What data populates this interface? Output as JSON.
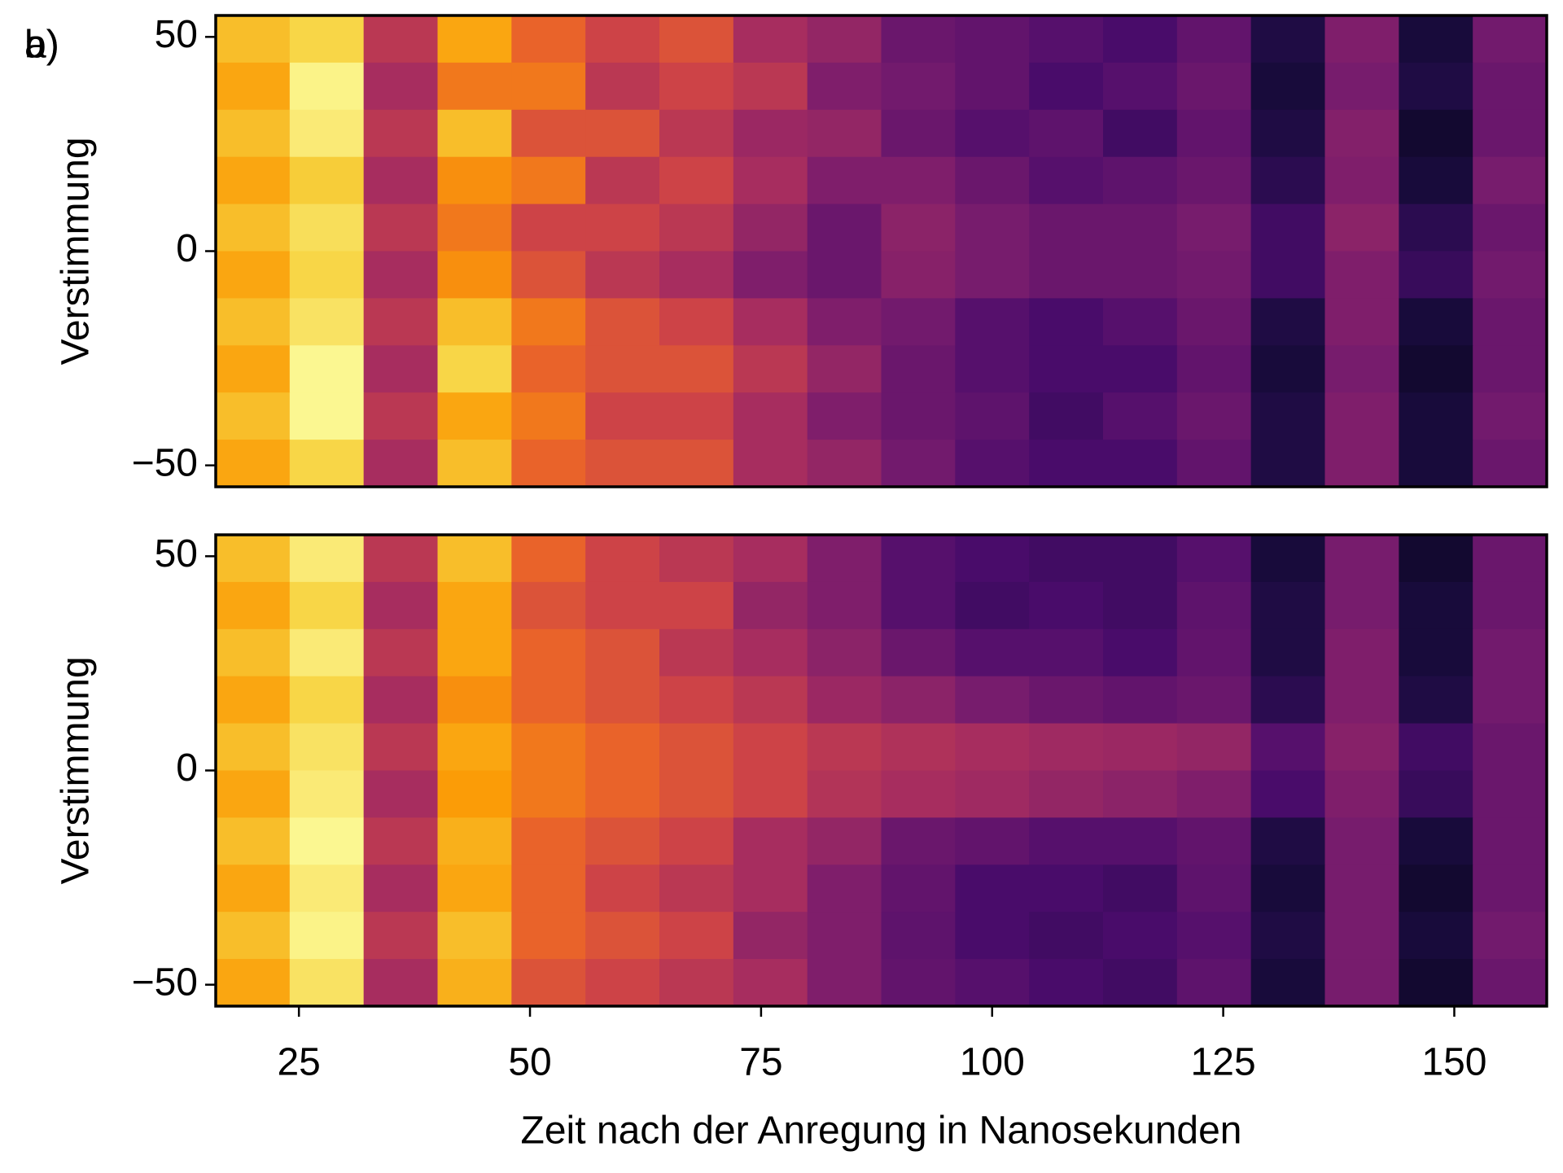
{
  "chart_data": [
    {
      "type": "heatmap",
      "label": "a)",
      "ylabel": "Verstimmung",
      "colormap": [
        "#000004",
        "#1b0c41",
        "#4a0c6b",
        "#781c6d",
        "#a52c60",
        "#cf4446",
        "#ed6925",
        "#fb9b06",
        "#f7d13d",
        "#fcffa4"
      ],
      "xlim": [
        16,
        160
      ],
      "ylim": [
        -55,
        55
      ],
      "yticks": [
        {
          "value": -50,
          "label": "−50"
        },
        0,
        50
      ],
      "x": [
        20,
        28,
        36,
        44,
        52,
        60,
        68,
        76,
        84,
        92,
        100,
        108,
        116,
        124,
        132,
        140,
        148,
        156
      ],
      "y": [
        49.5,
        38.5,
        27.5,
        16.5,
        5.5,
        -5.5,
        -16.5,
        -27.5,
        -38.5,
        -49.5
      ],
      "z": [
        [
          0.85,
          0.9,
          0.5,
          0.8,
          0.65,
          0.55,
          0.6,
          0.45,
          0.4,
          0.3,
          0.28,
          0.25,
          0.22,
          0.28,
          0.12,
          0.35,
          0.1,
          0.32
        ],
        [
          0.8,
          0.97,
          0.45,
          0.7,
          0.7,
          0.5,
          0.55,
          0.5,
          0.35,
          0.32,
          0.28,
          0.22,
          0.25,
          0.3,
          0.1,
          0.33,
          0.12,
          0.3
        ],
        [
          0.85,
          0.95,
          0.5,
          0.85,
          0.6,
          0.6,
          0.5,
          0.42,
          0.4,
          0.3,
          0.25,
          0.27,
          0.2,
          0.28,
          0.12,
          0.36,
          0.08,
          0.3
        ],
        [
          0.8,
          0.88,
          0.45,
          0.75,
          0.7,
          0.5,
          0.55,
          0.45,
          0.35,
          0.35,
          0.3,
          0.25,
          0.27,
          0.3,
          0.15,
          0.35,
          0.1,
          0.33
        ],
        [
          0.85,
          0.92,
          0.5,
          0.7,
          0.55,
          0.55,
          0.5,
          0.4,
          0.3,
          0.38,
          0.33,
          0.3,
          0.3,
          0.33,
          0.2,
          0.38,
          0.15,
          0.3
        ],
        [
          0.8,
          0.9,
          0.45,
          0.75,
          0.6,
          0.5,
          0.45,
          0.35,
          0.3,
          0.37,
          0.33,
          0.3,
          0.3,
          0.32,
          0.2,
          0.35,
          0.18,
          0.32
        ],
        [
          0.85,
          0.93,
          0.5,
          0.85,
          0.7,
          0.6,
          0.55,
          0.45,
          0.35,
          0.32,
          0.25,
          0.22,
          0.25,
          0.3,
          0.12,
          0.35,
          0.1,
          0.3
        ],
        [
          0.8,
          0.98,
          0.45,
          0.9,
          0.65,
          0.6,
          0.6,
          0.5,
          0.4,
          0.3,
          0.25,
          0.22,
          0.22,
          0.28,
          0.1,
          0.33,
          0.08,
          0.3
        ],
        [
          0.85,
          0.98,
          0.5,
          0.8,
          0.7,
          0.55,
          0.55,
          0.45,
          0.35,
          0.3,
          0.27,
          0.2,
          0.25,
          0.3,
          0.12,
          0.35,
          0.1,
          0.32
        ],
        [
          0.8,
          0.9,
          0.45,
          0.85,
          0.65,
          0.6,
          0.6,
          0.45,
          0.4,
          0.32,
          0.25,
          0.22,
          0.22,
          0.28,
          0.12,
          0.35,
          0.1,
          0.3
        ]
      ]
    },
    {
      "type": "heatmap",
      "label": "b)",
      "ylabel": "Verstimmung",
      "xlabel": "Zeit nach der Anregung in Nanosekunden",
      "colormap": [
        "#000004",
        "#1b0c41",
        "#4a0c6b",
        "#781c6d",
        "#a52c60",
        "#cf4446",
        "#ed6925",
        "#fb9b06",
        "#f7d13d",
        "#fcffa4"
      ],
      "xlim": [
        16,
        160
      ],
      "ylim": [
        -55,
        55
      ],
      "xticks": [
        25,
        50,
        75,
        100,
        125,
        150
      ],
      "yticks": [
        {
          "value": -50,
          "label": "−50"
        },
        0,
        50
      ],
      "x": [
        20,
        28,
        36,
        44,
        52,
        60,
        68,
        76,
        84,
        92,
        100,
        108,
        116,
        124,
        132,
        140,
        148,
        156
      ],
      "y": [
        49.5,
        38.5,
        27.5,
        16.5,
        5.5,
        -5.5,
        -16.5,
        -27.5,
        -38.5,
        -49.5
      ],
      "z": [
        [
          0.85,
          0.95,
          0.5,
          0.85,
          0.65,
          0.55,
          0.5,
          0.45,
          0.35,
          0.25,
          0.22,
          0.2,
          0.2,
          0.25,
          0.1,
          0.33,
          0.08,
          0.3
        ],
        [
          0.8,
          0.9,
          0.45,
          0.8,
          0.6,
          0.55,
          0.55,
          0.4,
          0.35,
          0.25,
          0.2,
          0.22,
          0.2,
          0.27,
          0.12,
          0.33,
          0.1,
          0.3
        ],
        [
          0.85,
          0.95,
          0.5,
          0.8,
          0.65,
          0.6,
          0.5,
          0.45,
          0.38,
          0.3,
          0.25,
          0.25,
          0.22,
          0.28,
          0.12,
          0.35,
          0.1,
          0.32
        ],
        [
          0.8,
          0.9,
          0.45,
          0.75,
          0.65,
          0.6,
          0.55,
          0.5,
          0.42,
          0.38,
          0.33,
          0.3,
          0.28,
          0.3,
          0.15,
          0.35,
          0.12,
          0.32
        ],
        [
          0.85,
          0.93,
          0.5,
          0.8,
          0.7,
          0.65,
          0.6,
          0.55,
          0.5,
          0.47,
          0.45,
          0.43,
          0.42,
          0.4,
          0.25,
          0.37,
          0.2,
          0.3
        ],
        [
          0.8,
          0.95,
          0.45,
          0.78,
          0.7,
          0.65,
          0.6,
          0.55,
          0.48,
          0.45,
          0.43,
          0.4,
          0.38,
          0.35,
          0.22,
          0.35,
          0.18,
          0.3
        ],
        [
          0.85,
          0.98,
          0.5,
          0.82,
          0.65,
          0.6,
          0.55,
          0.45,
          0.4,
          0.3,
          0.28,
          0.25,
          0.25,
          0.28,
          0.12,
          0.33,
          0.1,
          0.3
        ],
        [
          0.8,
          0.95,
          0.45,
          0.8,
          0.65,
          0.55,
          0.5,
          0.45,
          0.35,
          0.28,
          0.22,
          0.22,
          0.2,
          0.27,
          0.1,
          0.33,
          0.08,
          0.3
        ],
        [
          0.85,
          0.97,
          0.5,
          0.85,
          0.65,
          0.6,
          0.55,
          0.4,
          0.35,
          0.27,
          0.22,
          0.2,
          0.22,
          0.25,
          0.12,
          0.33,
          0.1,
          0.32
        ],
        [
          0.8,
          0.93,
          0.45,
          0.82,
          0.6,
          0.55,
          0.5,
          0.45,
          0.35,
          0.28,
          0.25,
          0.22,
          0.2,
          0.27,
          0.1,
          0.33,
          0.08,
          0.3
        ]
      ]
    }
  ]
}
